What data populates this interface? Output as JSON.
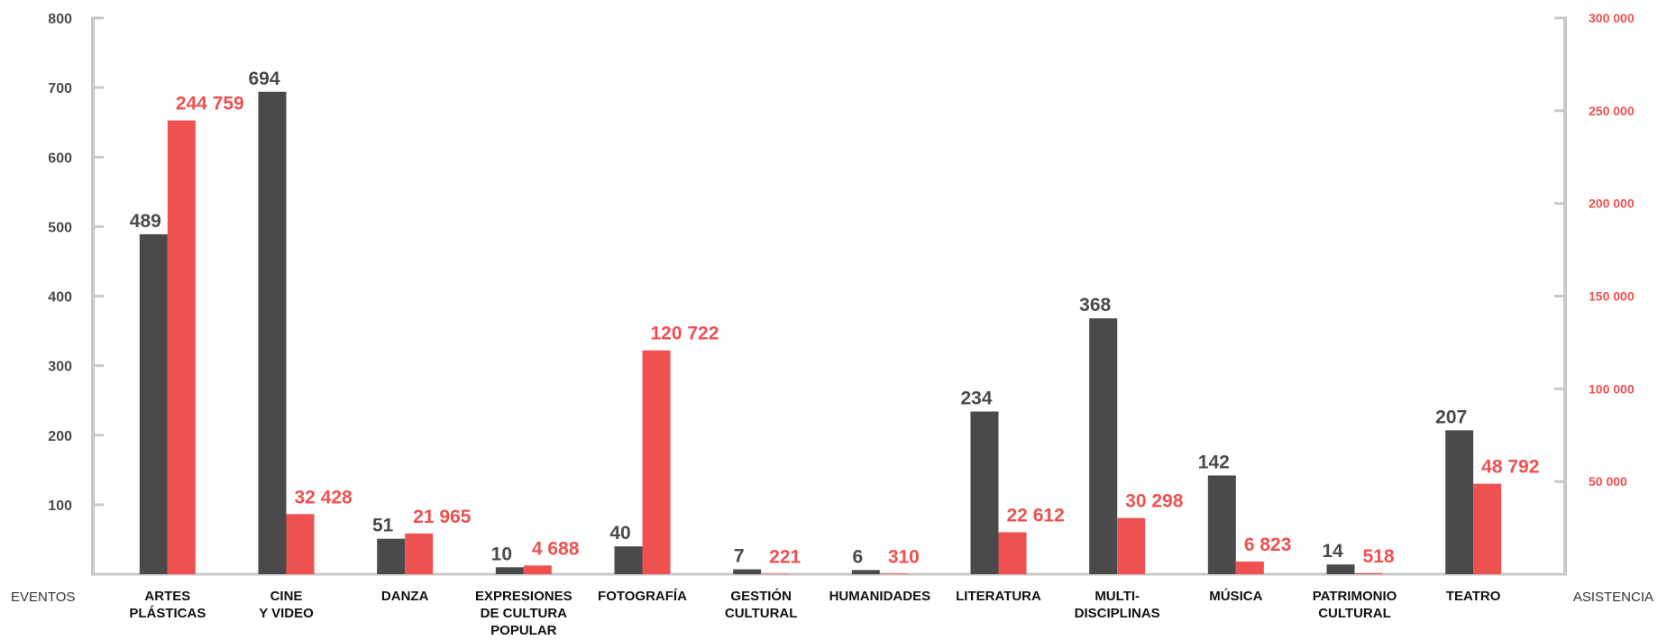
{
  "chart_data": {
    "type": "bar",
    "categories": [
      [
        "ARTES",
        "PLÁSTICAS"
      ],
      [
        "CINE",
        "Y VIDEO"
      ],
      [
        "DANZA"
      ],
      [
        "EXPRESIONES",
        "DE CULTURA",
        "POPULAR"
      ],
      [
        "FOTOGRAFÍA"
      ],
      [
        "GESTIÓN",
        "CULTURAL"
      ],
      [
        "HUMANIDADES"
      ],
      [
        "LITERATURA"
      ],
      [
        "MULTI-",
        "DISCIPLINAS"
      ],
      [
        "MÚSICA"
      ],
      [
        "PATRIMONIO",
        "CULTURAL"
      ],
      [
        "TEATRO"
      ]
    ],
    "series": [
      {
        "axis": "left",
        "color": "#4a4a4c",
        "values": [
          489,
          694,
          51,
          10,
          40,
          7,
          6,
          234,
          368,
          142,
          14,
          207
        ],
        "labels": [
          "489",
          "694",
          "51",
          "10",
          "40",
          "7",
          "6",
          "234",
          "368",
          "142",
          "14",
          "207"
        ]
      },
      {
        "axis": "right",
        "color": "#ef5050",
        "values": [
          244759,
          32428,
          21965,
          4688,
          120722,
          221,
          310,
          22612,
          30298,
          6823,
          518,
          48792
        ],
        "labels": [
          "244 759",
          "32 428",
          "21 965",
          "4 688",
          "120 722",
          "221",
          "310",
          "22 612",
          "30 298",
          "6 823",
          "518",
          "48 792"
        ]
      }
    ],
    "xlabel_left": "EVENTOS",
    "xlabel_right": "ASISTENCIA",
    "ylim_left": [
      0,
      800
    ],
    "ylim_right": [
      0,
      300000
    ],
    "yticks_left": [
      {
        "value": 100,
        "label": "100"
      },
      {
        "value": 200,
        "label": "200"
      },
      {
        "value": 300,
        "label": "300"
      },
      {
        "value": 400,
        "label": "400"
      },
      {
        "value": 500,
        "label": "500"
      },
      {
        "value": 600,
        "label": "600"
      },
      {
        "value": 700,
        "label": "700"
      },
      {
        "value": 800,
        "label": "800"
      }
    ],
    "yticks_right": [
      {
        "value": 50000,
        "label": "50 000"
      },
      {
        "value": 100000,
        "label": "100 000"
      },
      {
        "value": 150000,
        "label": "150 000"
      },
      {
        "value": 200000,
        "label": "200 000"
      },
      {
        "value": 250000,
        "label": "250 000"
      },
      {
        "value": 300000,
        "label": "300 000"
      }
    ],
    "grid": false,
    "legend": "none",
    "colors": {
      "axis": "#c8c8c8",
      "left_ticks": "#4a4a4a",
      "right_ticks": "#ef5050"
    }
  }
}
